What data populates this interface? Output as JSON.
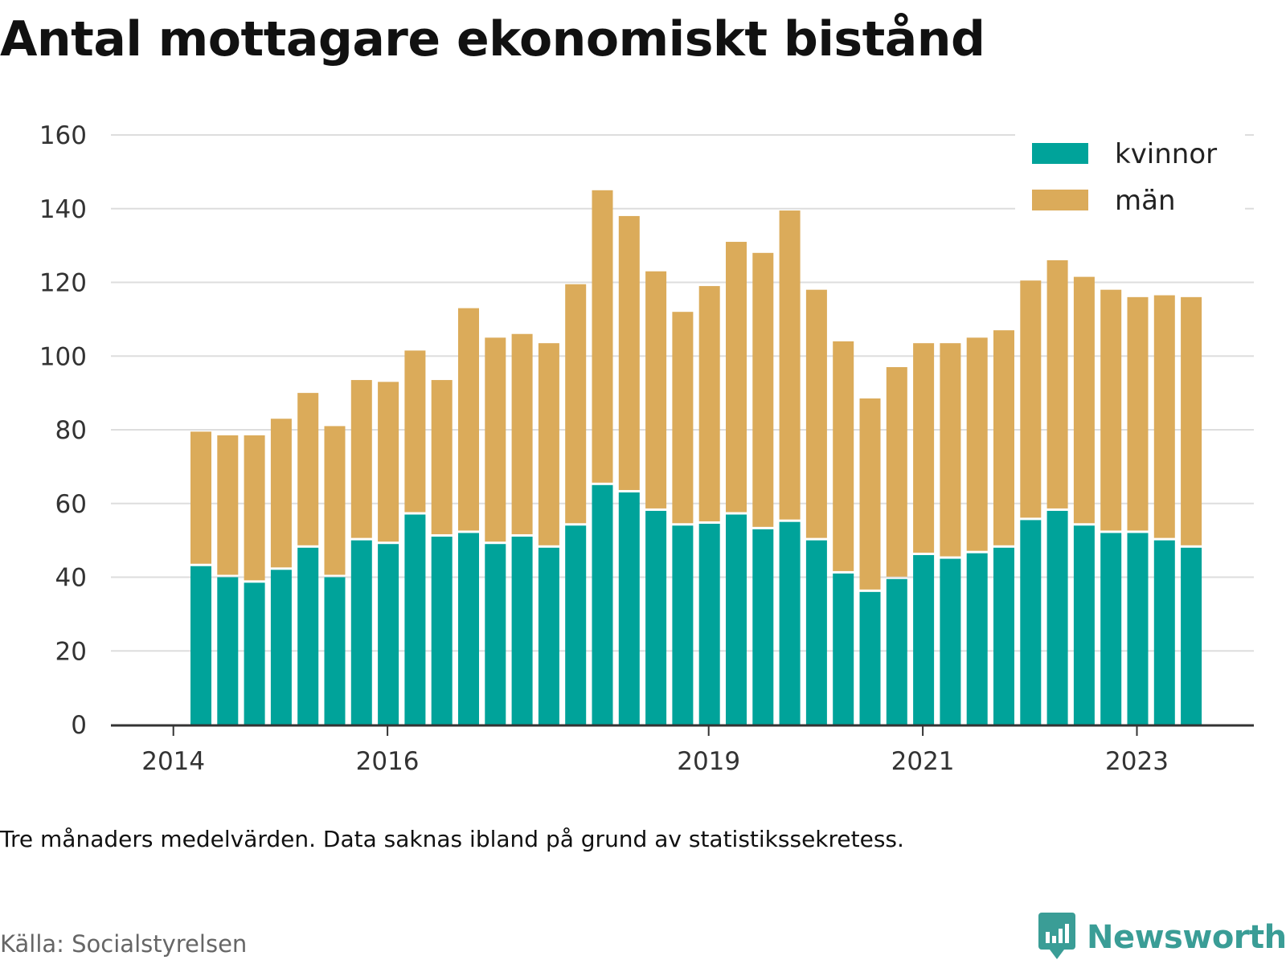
{
  "title": "Antal mottagare ekonomiskt bistånd",
  "note": "Tre månaders medelvärden. Data saknas ibland på grund av statistikssekretess.",
  "source": "Källa: Socialstyrelsen",
  "brand": "Newsworthy",
  "colors": {
    "kvinnor": "#00a39a",
    "man": "#dbab5a",
    "grid": "#dddddd",
    "axis": "#333333",
    "brand": "#3a9d96"
  },
  "chart_data": {
    "type": "bar",
    "stacked": true,
    "x_tick_labels": [
      "2014",
      "2016",
      "2019",
      "2021",
      "2023"
    ],
    "y_ticks": [
      0,
      20,
      40,
      60,
      80,
      100,
      120,
      140,
      160
    ],
    "ylim": [
      0,
      160
    ],
    "grid": true,
    "legend_position": "top-right",
    "series": [
      {
        "name": "kvinnor",
        "values": [
          43,
          40,
          38.5,
          42,
          48,
          40,
          50,
          49,
          57,
          51,
          52,
          49,
          51,
          48,
          54,
          65,
          63,
          58,
          54,
          54.5,
          57,
          53,
          55,
          50,
          41,
          36,
          39.5,
          46,
          45,
          46.5,
          48,
          55.5,
          58,
          54,
          52,
          52,
          50,
          48
        ]
      },
      {
        "name": "män",
        "values": [
          36.5,
          38.5,
          40,
          41,
          42,
          41,
          43.5,
          44,
          44.5,
          42.5,
          61,
          56,
          55,
          55.5,
          65.5,
          80,
          75,
          65,
          58,
          64.5,
          74,
          75,
          84.5,
          68,
          63,
          52.5,
          57.5,
          57.5,
          58.5,
          58.5,
          59,
          65,
          68,
          67.5,
          66,
          64,
          66.5,
          68
        ]
      }
    ]
  }
}
